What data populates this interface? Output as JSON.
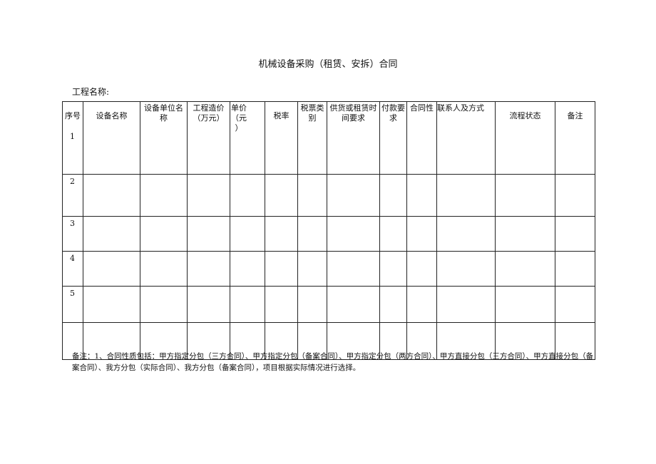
{
  "title": "机械设备采购（租赁、安拆）合同",
  "project_label": "工程名称:",
  "table": {
    "headers": [
      "序号",
      "设备名称",
      "设备单位名称",
      "工程造价（万元）",
      "单价（元）",
      "税率",
      "税票类别",
      "供货或租赁时间要求",
      "付款要求",
      "合同性",
      "联系人及方式",
      "流程状态",
      "备注"
    ],
    "header_lines": {
      "unit": [
        "设备单位名",
        "称"
      ],
      "cost": [
        "工程造价",
        "（万元）"
      ],
      "price": [
        "单价",
        "（元）"
      ],
      "tax_type": [
        "税票类",
        "别"
      ],
      "supply": [
        "供货或租赁时",
        "间要求"
      ],
      "payment": [
        "付款要",
        "求"
      ]
    },
    "rows": [
      "1",
      "2",
      "3",
      "4",
      "5",
      ""
    ]
  },
  "note": "备注：1、合同性质包括：甲方指定分包（三方合同）、甲方指定分包（备案合同）、甲方指定分包（两方合同）、甲方直接分包（三方合同）、甲方直接分包（备案合同）、我方分包（实际合同）、我方分包（备案合同），项目根据实际情况进行选择。"
}
